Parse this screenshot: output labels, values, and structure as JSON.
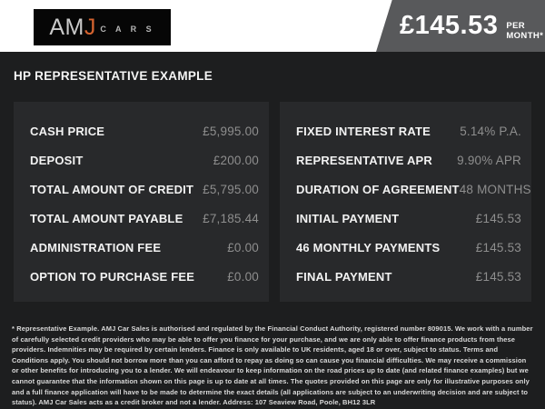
{
  "header": {
    "logo": {
      "am": "AM",
      "j": "J",
      "cars": "C A R S"
    },
    "price_banner": {
      "amount": "£145.53",
      "period": "PER MONTH*"
    }
  },
  "section_title": "HP REPRESENTATIVE EXAMPLE",
  "finance_table": {
    "left_rows": [
      {
        "label": "CASH PRICE",
        "value": "£5,995.00"
      },
      {
        "label": "DEPOSIT",
        "value": "£200.00"
      },
      {
        "label": "TOTAL AMOUNT OF CREDIT",
        "value": "£5,795.00"
      },
      {
        "label": "TOTAL AMOUNT PAYABLE",
        "value": "£7,185.44"
      },
      {
        "label": "ADMINISTRATION FEE",
        "value": "£0.00"
      },
      {
        "label": "OPTION TO PURCHASE FEE",
        "value": "£0.00"
      }
    ],
    "right_rows": [
      {
        "label": "FIXED INTEREST RATE",
        "value": "5.14% P.A."
      },
      {
        "label": "REPRESENTATIVE APR",
        "value": "9.90% APR"
      },
      {
        "label": "DURATION OF AGREEMENT",
        "value": "48 MONTHS"
      },
      {
        "label": "INITIAL PAYMENT",
        "value": "£145.53"
      },
      {
        "label": "46 MONTHLY PAYMENTS",
        "value": "£145.53"
      },
      {
        "label": "FINAL PAYMENT",
        "value": "£145.53"
      }
    ]
  },
  "disclaimer": "* Representative Example. AMJ Car Sales is authorised and regulated by the Financial Conduct Authority, registered number 809015. We work with a number of carefully selected credit providers who may be able to offer you finance for your purchase, and we are only able to offer finance products from these providers. Indemnities may be required by certain lenders. Finance is only available to UK residents, aged 18 or over, subject to status. Terms and Conditions apply. You should not borrow more than you can afford to repay as doing so can cause you financial difficulties. We may receive a commission or other benefits for introducing you to a lender. We will endeavour to keep information on the road prices up to date (and related finance examples) but we cannot guarantee that the information shown on this page is up to date at all times. The quotes provided on this page are only for illustrative purposes only and a full finance application will have to be made to determine the exact details (all applications are subject to an underwriting decision and are subject to status). AMJ Car Sales acts as a credit broker and not a lender. Address: 107 Seaview Road, Poole, BH12 3LR",
  "colors": {
    "header_background": "#ffffff",
    "logo_background": "#060606",
    "logo_accent_orange": "#d4632f",
    "banner_gray": "#58595b",
    "page_background": "#1d1e1f",
    "panel_background": "#28292b",
    "label_white": "#f2f2f2",
    "value_gray": "#8e8e8e"
  }
}
